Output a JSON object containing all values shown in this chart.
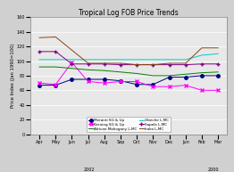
{
  "title": "Tropical Log FOB Price Trends",
  "ylabel": "Price Index (Jan 1990=100)",
  "months": [
    "Apr",
    "May",
    "Jun",
    "Jul",
    "Aug",
    "Sep",
    "Oct",
    "Nov",
    "Dec",
    "Jun",
    "Feb",
    "Mar"
  ],
  "ylim": [
    0,
    160
  ],
  "yticks": [
    0,
    20,
    40,
    60,
    80,
    100,
    120,
    140,
    160
  ],
  "series": [
    {
      "label": "Meranti SG & Up",
      "color": "#000080",
      "marker": "o",
      "values": [
        67,
        67,
        75,
        75,
        75,
        73,
        68,
        68,
        78,
        78,
        80,
        80
      ]
    },
    {
      "label": "Keruing SG & Up",
      "color": "#ff00ff",
      "marker": "x",
      "values": [
        70,
        68,
        98,
        72,
        70,
        72,
        72,
        65,
        65,
        67,
        60,
        60
      ]
    },
    {
      "label": "African Mahogany L-MC",
      "color": "#008000",
      "marker": null,
      "values": [
        92,
        92,
        90,
        88,
        87,
        85,
        83,
        80,
        80,
        82,
        84,
        85
      ]
    },
    {
      "label": "Obeche L-MC",
      "color": "#00cccc",
      "marker": null,
      "values": [
        102,
        102,
        102,
        102,
        102,
        102,
        102,
        102,
        102,
        102,
        108,
        110
      ]
    },
    {
      "label": "Sapele L-MC",
      "color": "#800080",
      "marker": "+",
      "values": [
        113,
        113,
        96,
        96,
        96,
        95,
        95,
        95,
        95,
        95,
        96,
        96
      ]
    },
    {
      "label": "Iroko L-MC",
      "color": "#8b4513",
      "marker": null,
      "values": [
        132,
        133,
        115,
        97,
        97,
        97,
        95,
        95,
        97,
        97,
        118,
        118
      ]
    }
  ],
  "background_color": "#d0d0d0",
  "plot_bg_color": "#e8e8e8",
  "legend_bg": "#ffffff",
  "year_labels": [
    [
      "2002",
      0.38
    ],
    [
      "2000",
      0.91
    ]
  ],
  "title_fontsize": 5.5,
  "axis_fontsize": 3.8,
  "tick_fontsize": 3.5,
  "legend_fontsize": 3.0
}
